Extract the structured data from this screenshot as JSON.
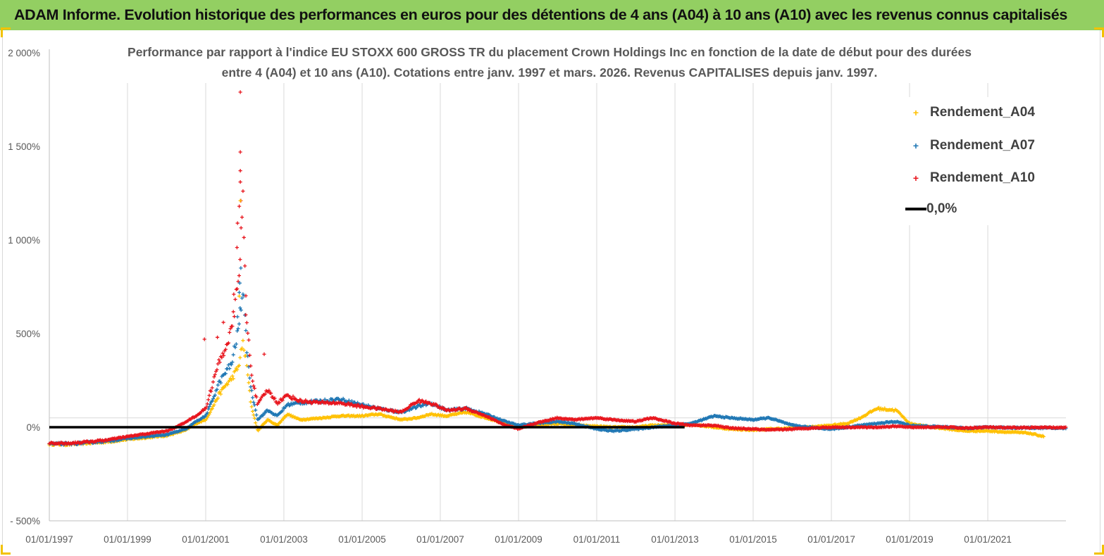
{
  "header": {
    "title": "ADAM Informe. Evolution historique des performances en euros pour des détentions de 4 ans (A04) à 10 ans (A10) avec les revenus connus capitalisés",
    "background_color": "#93cf62",
    "corner_color": "#f2c200"
  },
  "chart_data": {
    "type": "scatter",
    "title_line1": "Performance par rapport à l'indice EU STOXX 600 GROSS TR  du placement Crown Holdings Inc en fonction de la date de début pour des durées",
    "title_line2": "entre 4 (A04) et 10 ans (A10). Cotations entre janv. 1997 et mars. 2026. Revenus CAPITALISES depuis janv. 1997.",
    "xlabel": "",
    "ylabel": "",
    "x_range": [
      "1997-01-01",
      "2023-01-01"
    ],
    "x_ticks": [
      "01/01/1997",
      "01/01/1999",
      "01/01/2001",
      "01/01/2003",
      "01/01/2005",
      "01/01/2007",
      "01/01/2009",
      "01/01/2011",
      "01/01/2013",
      "01/01/2015",
      "01/01/2017",
      "01/01/2019",
      "01/01/2021"
    ],
    "y_range": [
      -500,
      2000
    ],
    "y_ticks": [
      {
        "value": 2000,
        "label": "2 000%"
      },
      {
        "value": 1500,
        "label": "1 500%"
      },
      {
        "value": 1000,
        "label": "1 000%"
      },
      {
        "value": 500,
        "label": "500%"
      },
      {
        "value": 0,
        "label": "0%"
      },
      {
        "value": -500,
        "label": "- 500%"
      }
    ],
    "grid": "vertical gridlines at each x tick, horizontal gridline at 50%",
    "legend_position": "top-right",
    "marker": "+",
    "series": [
      {
        "name": "Rendement_A04",
        "color": "#ffc000",
        "end": "2022-06-15",
        "points": [
          [
            "1997-01-01",
            -90
          ],
          [
            "1997-07-01",
            -92
          ],
          [
            "1998-01-01",
            -85
          ],
          [
            "1998-07-01",
            -78
          ],
          [
            "1999-01-01",
            -65
          ],
          [
            "1999-07-01",
            -55
          ],
          [
            "2000-01-01",
            -45
          ],
          [
            "2000-04-01",
            -30
          ],
          [
            "2000-07-01",
            -15
          ],
          [
            "2000-10-01",
            20
          ],
          [
            "2001-01-01",
            40
          ],
          [
            "2001-03-01",
            100
          ],
          [
            "2001-05-01",
            170
          ],
          [
            "2001-07-01",
            220
          ],
          [
            "2001-09-01",
            260
          ],
          [
            "2001-11-01",
            320
          ],
          [
            "2001-12-15",
            450
          ],
          [
            "2002-01-15",
            350
          ],
          [
            "2002-03-01",
            120
          ],
          [
            "2002-05-01",
            -20
          ],
          [
            "2002-08-01",
            40
          ],
          [
            "2002-11-01",
            10
          ],
          [
            "2003-02-01",
            70
          ],
          [
            "2003-06-01",
            40
          ],
          [
            "2004-01-01",
            50
          ],
          [
            "2004-06-01",
            60
          ],
          [
            "2005-01-01",
            60
          ],
          [
            "2005-06-01",
            70
          ],
          [
            "2006-01-01",
            40
          ],
          [
            "2006-06-01",
            50
          ],
          [
            "2006-10-01",
            70
          ],
          [
            "2007-03-01",
            60
          ],
          [
            "2007-09-01",
            80
          ],
          [
            "2008-03-01",
            50
          ],
          [
            "2008-09-01",
            20
          ],
          [
            "2009-01-01",
            0
          ],
          [
            "2009-06-01",
            10
          ],
          [
            "2010-01-01",
            20
          ],
          [
            "2010-06-01",
            10
          ],
          [
            "2011-01-01",
            5
          ],
          [
            "2011-06-01",
            0
          ],
          [
            "2012-01-01",
            0
          ],
          [
            "2012-06-01",
            10
          ],
          [
            "2013-01-01",
            10
          ],
          [
            "2013-06-01",
            15
          ],
          [
            "2014-01-01",
            0
          ],
          [
            "2014-06-01",
            -10
          ],
          [
            "2015-01-01",
            -15
          ],
          [
            "2015-06-01",
            -10
          ],
          [
            "2016-01-01",
            -5
          ],
          [
            "2016-06-01",
            0
          ],
          [
            "2017-01-01",
            10
          ],
          [
            "2017-06-01",
            20
          ],
          [
            "2017-10-01",
            50
          ],
          [
            "2018-03-01",
            100
          ],
          [
            "2018-09-01",
            90
          ],
          [
            "2019-01-01",
            20
          ],
          [
            "2019-06-01",
            5
          ],
          [
            "2020-01-01",
            -10
          ],
          [
            "2020-06-01",
            -20
          ],
          [
            "2021-01-01",
            -20
          ],
          [
            "2021-06-01",
            -25
          ],
          [
            "2022-01-01",
            -30
          ],
          [
            "2022-06-15",
            -50
          ]
        ]
      },
      {
        "name": "Rendement_A07",
        "color": "#1f77b4",
        "end": "2022-12-31",
        "points": [
          [
            "1997-01-01",
            -88
          ],
          [
            "1997-07-01",
            -90
          ],
          [
            "1998-01-01",
            -82
          ],
          [
            "1998-07-01",
            -74
          ],
          [
            "1999-01-01",
            -60
          ],
          [
            "1999-07-01",
            -50
          ],
          [
            "2000-01-01",
            -40
          ],
          [
            "2000-04-01",
            -25
          ],
          [
            "2000-07-01",
            -10
          ],
          [
            "2000-10-01",
            30
          ],
          [
            "2001-01-01",
            60
          ],
          [
            "2001-03-01",
            140
          ],
          [
            "2001-05-01",
            230
          ],
          [
            "2001-07-01",
            290
          ],
          [
            "2001-09-01",
            340
          ],
          [
            "2001-11-01",
            520
          ],
          [
            "2001-12-15",
            750
          ],
          [
            "2002-01-15",
            450
          ],
          [
            "2002-03-01",
            200
          ],
          [
            "2002-05-01",
            40
          ],
          [
            "2002-08-01",
            90
          ],
          [
            "2002-11-01",
            60
          ],
          [
            "2003-02-01",
            120
          ],
          [
            "2003-06-01",
            130
          ],
          [
            "2004-01-01",
            140
          ],
          [
            "2004-06-01",
            150
          ],
          [
            "2005-01-01",
            120
          ],
          [
            "2005-06-01",
            100
          ],
          [
            "2006-01-01",
            80
          ],
          [
            "2006-06-01",
            110
          ],
          [
            "2006-10-01",
            130
          ],
          [
            "2007-03-01",
            90
          ],
          [
            "2007-09-01",
            100
          ],
          [
            "2008-03-01",
            70
          ],
          [
            "2008-09-01",
            30
          ],
          [
            "2009-01-01",
            10
          ],
          [
            "2009-06-01",
            20
          ],
          [
            "2010-01-01",
            30
          ],
          [
            "2010-06-01",
            20
          ],
          [
            "2011-01-01",
            -10
          ],
          [
            "2011-06-01",
            -20
          ],
          [
            "2012-01-01",
            -10
          ],
          [
            "2012-06-01",
            0
          ],
          [
            "2013-01-01",
            10
          ],
          [
            "2013-06-01",
            20
          ],
          [
            "2014-01-01",
            60
          ],
          [
            "2014-06-01",
            50
          ],
          [
            "2015-01-01",
            40
          ],
          [
            "2015-06-01",
            50
          ],
          [
            "2016-01-01",
            10
          ],
          [
            "2016-06-01",
            0
          ],
          [
            "2017-01-01",
            -10
          ],
          [
            "2017-06-01",
            0
          ],
          [
            "2017-10-01",
            10
          ],
          [
            "2018-03-01",
            20
          ],
          [
            "2018-09-01",
            30
          ],
          [
            "2019-01-01",
            10
          ],
          [
            "2019-06-01",
            5
          ],
          [
            "2020-01-01",
            0
          ],
          [
            "2020-06-01",
            -5
          ],
          [
            "2021-01-01",
            0
          ],
          [
            "2021-06-01",
            -2
          ],
          [
            "2022-01-01",
            -3
          ],
          [
            "2022-12-31",
            -5
          ]
        ]
      },
      {
        "name": "Rendement_A10",
        "color": "#e8141c",
        "end": "2022-12-31",
        "points": [
          [
            "1997-01-01",
            -85
          ],
          [
            "1997-07-01",
            -86
          ],
          [
            "1998-01-01",
            -78
          ],
          [
            "1998-07-01",
            -68
          ],
          [
            "1999-01-01",
            -50
          ],
          [
            "1999-07-01",
            -35
          ],
          [
            "2000-01-01",
            -20
          ],
          [
            "2000-04-01",
            0
          ],
          [
            "2000-07-01",
            30
          ],
          [
            "2000-10-01",
            60
          ],
          [
            "2001-01-01",
            100
          ],
          [
            "2001-03-01",
            220
          ],
          [
            "2001-05-01",
            340
          ],
          [
            "2001-07-01",
            420
          ],
          [
            "2001-09-01",
            520
          ],
          [
            "2001-11-01",
            780
          ],
          [
            "2001-12-15",
            1200
          ],
          [
            "2002-01-15",
            600
          ],
          [
            "2002-03-01",
            300
          ],
          [
            "2002-05-01",
            120
          ],
          [
            "2002-08-01",
            200
          ],
          [
            "2002-11-01",
            130
          ],
          [
            "2003-02-01",
            170
          ],
          [
            "2003-06-01",
            140
          ],
          [
            "2004-01-01",
            130
          ],
          [
            "2004-06-01",
            130
          ],
          [
            "2005-01-01",
            110
          ],
          [
            "2005-06-01",
            100
          ],
          [
            "2006-01-01",
            80
          ],
          [
            "2006-06-01",
            140
          ],
          [
            "2006-10-01",
            130
          ],
          [
            "2007-03-01",
            90
          ],
          [
            "2007-09-01",
            100
          ],
          [
            "2008-03-01",
            60
          ],
          [
            "2008-09-01",
            10
          ],
          [
            "2009-01-01",
            -10
          ],
          [
            "2009-06-01",
            20
          ],
          [
            "2010-01-01",
            50
          ],
          [
            "2010-06-01",
            40
          ],
          [
            "2011-01-01",
            50
          ],
          [
            "2011-06-01",
            40
          ],
          [
            "2012-01-01",
            30
          ],
          [
            "2012-06-01",
            50
          ],
          [
            "2013-01-01",
            20
          ],
          [
            "2013-06-01",
            10
          ],
          [
            "2014-01-01",
            10
          ],
          [
            "2014-06-01",
            -5
          ],
          [
            "2015-01-01",
            -10
          ],
          [
            "2015-06-01",
            -15
          ],
          [
            "2016-01-01",
            -10
          ],
          [
            "2016-06-01",
            -5
          ],
          [
            "2017-01-01",
            0
          ],
          [
            "2017-06-01",
            0
          ],
          [
            "2017-10-01",
            0
          ],
          [
            "2018-03-01",
            0
          ],
          [
            "2018-09-01",
            5
          ],
          [
            "2019-01-01",
            0
          ],
          [
            "2019-06-01",
            0
          ],
          [
            "2020-01-01",
            0
          ],
          [
            "2020-06-01",
            -5
          ],
          [
            "2021-01-01",
            0
          ],
          [
            "2021-06-01",
            -3
          ],
          [
            "2022-01-01",
            -2
          ],
          [
            "2022-12-31",
            -2
          ]
        ]
      }
    ],
    "outliers": [
      {
        "series": "Rendement_A10",
        "x": "2001-11-20",
        "y": 1790
      },
      {
        "series": "Rendement_A10",
        "x": "2001-11-20",
        "y": 1470
      },
      {
        "series": "Rendement_A10",
        "x": "2001-11-20",
        "y": 1370
      },
      {
        "series": "Rendement_A10",
        "x": "2001-11-20",
        "y": 1310
      },
      {
        "series": "Rendement_A10",
        "x": "2001-11-25",
        "y": 1210
      },
      {
        "series": "Rendement_A10",
        "x": "2001-11-10",
        "y": 1180
      },
      {
        "series": "Rendement_A10",
        "x": "2001-10-25",
        "y": 1090
      },
      {
        "series": "Rendement_A10",
        "x": "2001-10-20",
        "y": 960
      },
      {
        "series": "Rendement_A10",
        "x": "2001-09-20",
        "y": 710
      },
      {
        "series": "Rendement_A10",
        "x": "2001-06-15",
        "y": 560
      },
      {
        "series": "Rendement_A10",
        "x": "2001-04-20",
        "y": 480
      },
      {
        "series": "Rendement_A10",
        "x": "2000-12-20",
        "y": 470
      },
      {
        "series": "Rendement_A10",
        "x": "2002-07-01",
        "y": 390
      },
      {
        "series": "Rendement_A10",
        "x": "2002-01-10",
        "y": 600
      },
      {
        "series": "Rendement_A07",
        "x": "2001-11-25",
        "y": 850
      },
      {
        "series": "Rendement_A07",
        "x": "2001-11-15",
        "y": 770
      },
      {
        "series": "Rendement_A07",
        "x": "2001-11-10",
        "y": 720
      },
      {
        "series": "Rendement_A07",
        "x": "2001-10-25",
        "y": 590
      },
      {
        "series": "Rendement_A04",
        "x": "2001-11-20",
        "y": 1210
      },
      {
        "series": "Rendement_A04",
        "x": "2001-11-10",
        "y": 700
      }
    ],
    "reference_line": {
      "name": "0,0%",
      "value": 0,
      "color": "#000000"
    },
    "legend": [
      {
        "label": "Rendement_A04",
        "marker": "+",
        "color": "#ffc000"
      },
      {
        "label": "Rendement_A07",
        "marker": "+",
        "color": "#1f77b4"
      },
      {
        "label": "Rendement_A10",
        "marker": "+",
        "color": "#e8141c"
      },
      {
        "label": "0,0%",
        "marker": "line",
        "color": "#000000"
      }
    ]
  }
}
